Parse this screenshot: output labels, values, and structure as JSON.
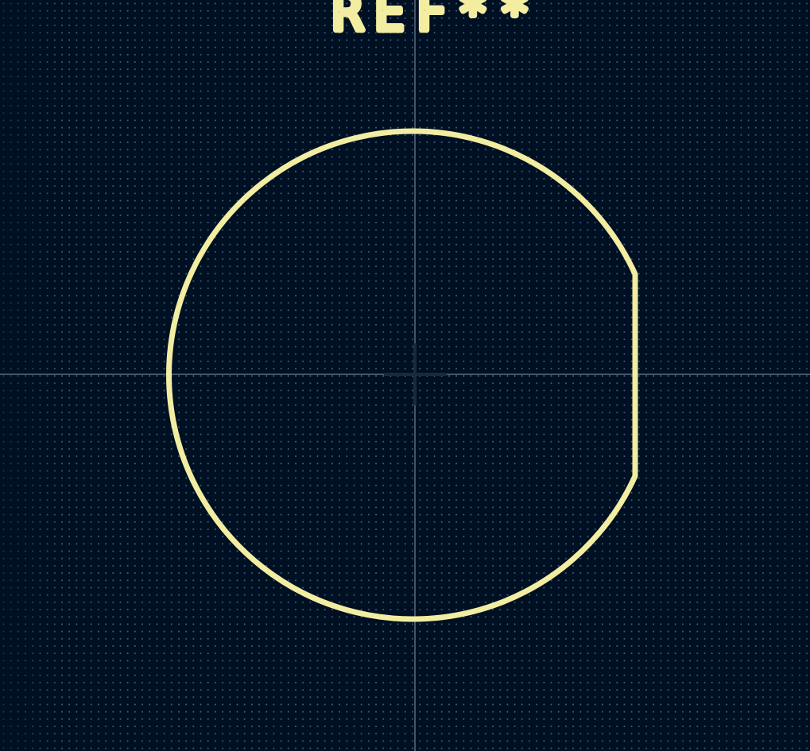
{
  "footprint": {
    "reference": "REF**"
  },
  "colors": {
    "background": "#001023",
    "grid_dot": "#7896be",
    "silkscreen": "#f2eda1",
    "crosshair": "#9fb3c8",
    "anchor": "#1a2a3a"
  }
}
